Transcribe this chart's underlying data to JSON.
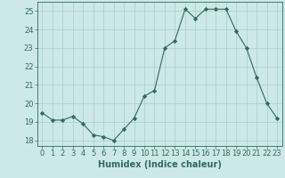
{
  "x": [
    0,
    1,
    2,
    3,
    4,
    5,
    6,
    7,
    8,
    9,
    10,
    11,
    12,
    13,
    14,
    15,
    16,
    17,
    18,
    19,
    20,
    21,
    22,
    23
  ],
  "y": [
    19.5,
    19.1,
    19.1,
    19.3,
    18.9,
    18.3,
    18.2,
    18.0,
    18.6,
    19.2,
    20.4,
    20.7,
    23.0,
    23.4,
    25.1,
    24.6,
    25.1,
    25.1,
    25.1,
    23.9,
    23.0,
    21.4,
    20.0,
    19.2
  ],
  "line_color": "#2e6b5e",
  "marker": "D",
  "marker_size": 2.2,
  "bg_color": "#cce8e8",
  "grid_color": "#aacccc",
  "xlabel": "Humidex (Indice chaleur)",
  "ylim": [
    17.7,
    25.5
  ],
  "xlim": [
    -0.5,
    23.5
  ],
  "yticks": [
    18,
    19,
    20,
    21,
    22,
    23,
    24,
    25
  ],
  "xticks": [
    0,
    1,
    2,
    3,
    4,
    5,
    6,
    7,
    8,
    9,
    10,
    11,
    12,
    13,
    14,
    15,
    16,
    17,
    18,
    19,
    20,
    21,
    22,
    23
  ],
  "tick_color": "#2e6b5e",
  "label_fontsize": 7.0,
  "tick_fontsize": 6.0
}
